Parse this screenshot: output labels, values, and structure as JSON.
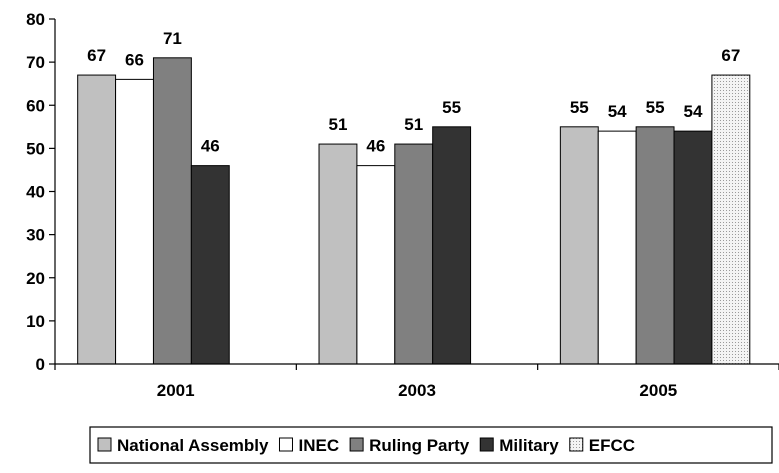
{
  "chart_data": {
    "type": "bar",
    "categories": [
      "2001",
      "2003",
      "2005"
    ],
    "series": [
      {
        "name": "National Assembly",
        "values": [
          67,
          51,
          55
        ],
        "color": "#c0c0c0",
        "pattern": "solid"
      },
      {
        "name": "INEC",
        "values": [
          66,
          46,
          54
        ],
        "color": "#ffffff",
        "pattern": "solid"
      },
      {
        "name": "Ruling Party",
        "values": [
          71,
          51,
          55
        ],
        "color": "#808080",
        "pattern": "solid"
      },
      {
        "name": "Military",
        "values": [
          46,
          55,
          54
        ],
        "color": "#333333",
        "pattern": "solid"
      },
      {
        "name": "EFCC",
        "values": [
          null,
          null,
          67
        ],
        "color": "#e6e6e6",
        "pattern": "dotted"
      }
    ],
    "data_labels": [
      [
        "67",
        "66",
        "71",
        "46",
        null
      ],
      [
        "51",
        "46",
        "51",
        "55",
        null
      ],
      [
        "55",
        "54",
        "55",
        "54",
        "67"
      ]
    ],
    "yticks": [
      "0",
      "10",
      "20",
      "30",
      "40",
      "50",
      "60",
      "70",
      "80"
    ],
    "ylim": [
      0,
      80
    ],
    "title": "",
    "xlabel": "",
    "ylabel": "",
    "grid": false,
    "legend_position": "bottom-right"
  }
}
